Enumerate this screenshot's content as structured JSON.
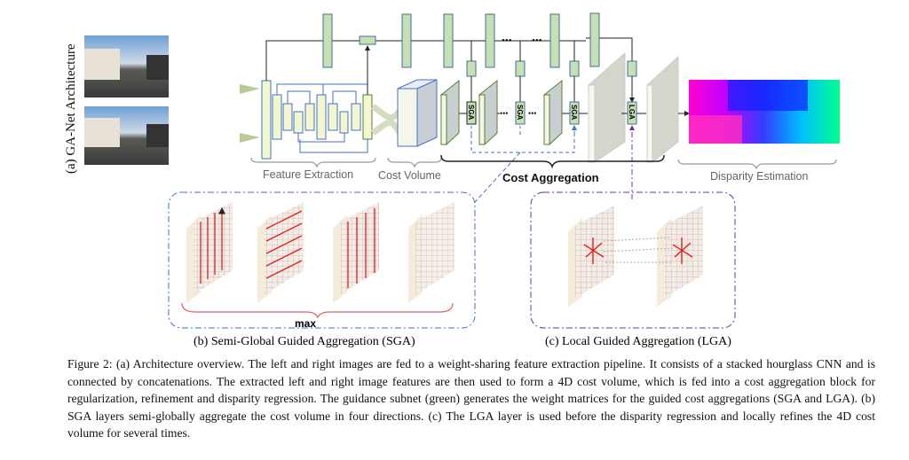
{
  "figure": {
    "panel_a_label": "(a) GA-Net Architecture",
    "stages": {
      "feature_extraction": "Feature Extraction",
      "cost_volume": "Cost Volume",
      "cost_aggregation": "Cost Aggregation",
      "disparity_estimation": "Disparity Estimation"
    },
    "blocks": {
      "sga": "SGA",
      "lga": "LGA",
      "ellipsis": "•••"
    },
    "panel_b": {
      "max_label": "max",
      "caption": "(b) Semi-Global Guided Aggregation (SGA)"
    },
    "panel_c": {
      "caption": "(c) Local Guided Aggregation (LGA)"
    },
    "colors": {
      "guidance_green": "#c6e0b4",
      "feature_yellow": "#f2f7d0",
      "sga_blue": "#4472c4",
      "lga_purple": "#7030a0",
      "aggregation_red": "#e02020"
    }
  },
  "caption": "Figure 2: (a) Architecture overview. The left and right images are fed to a weight-sharing feature extraction pipeline. It consists of a stacked hourglass CNN and is connected by concatenations. The extracted left and right image features are then used to form a 4D cost volume, which is fed into a cost aggregation block for regularization, refinement and disparity regression. The guidance subnet (green) generates the weight matrices for the guided cost aggregations (SGA and LGA). (b) SGA layers semi-globally aggregate the cost volume in four directions. (c) The LGA layer is used before the disparity regression and locally refines the 4D cost volume for several times."
}
